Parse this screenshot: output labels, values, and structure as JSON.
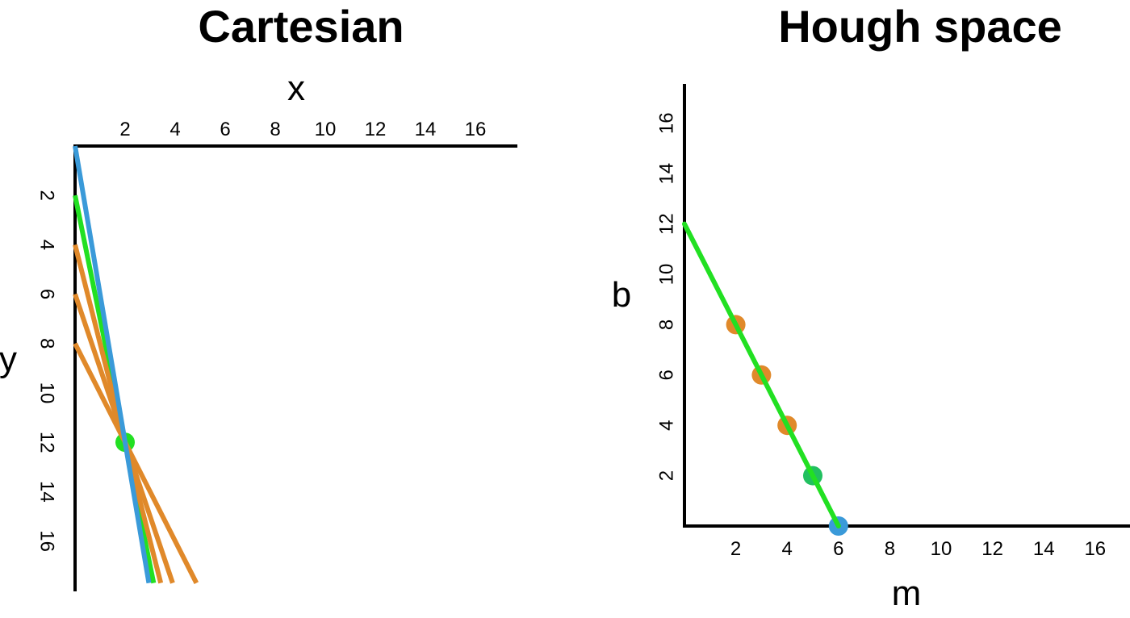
{
  "cartesian": {
    "title": "Cartesian",
    "x_label": "x",
    "y_label": "y",
    "x_ticks": [
      "2",
      "4",
      "6",
      "8",
      "10",
      "12",
      "14",
      "16"
    ],
    "y_ticks": [
      "2",
      "4",
      "6",
      "8",
      "10",
      "12",
      "14",
      "16"
    ],
    "point": {
      "x": 2,
      "y": 12,
      "color": "#22e022"
    },
    "lines": [
      {
        "slope": 5,
        "intercept": 2,
        "color": "#22e022"
      },
      {
        "slope": 4,
        "intercept": 4,
        "color": "#e0892a"
      },
      {
        "slope": 3,
        "intercept": 6,
        "color": "#e0892a"
      },
      {
        "slope": 2,
        "intercept": 8,
        "color": "#e0892a"
      },
      {
        "slope": 6,
        "intercept": 0,
        "color": "#3a9ad9"
      }
    ]
  },
  "hough": {
    "title": "Hough space",
    "x_label": "m",
    "y_label": "b",
    "x_ticks": [
      "2",
      "4",
      "6",
      "8",
      "10",
      "12",
      "14",
      "16"
    ],
    "y_ticks": [
      "2",
      "4",
      "6",
      "8",
      "10",
      "12",
      "14",
      "16"
    ],
    "line": {
      "slope": -2,
      "intercept": 12,
      "color": "#22e022"
    },
    "points": [
      {
        "m": 2,
        "b": 8,
        "color": "#e0892a"
      },
      {
        "m": 3,
        "b": 6,
        "color": "#e0892a"
      },
      {
        "m": 4,
        "b": 4,
        "color": "#e0892a"
      },
      {
        "m": 5,
        "b": 2,
        "color": "#22c060"
      },
      {
        "m": 6,
        "b": 0,
        "color": "#3a9ad9"
      }
    ]
  }
}
